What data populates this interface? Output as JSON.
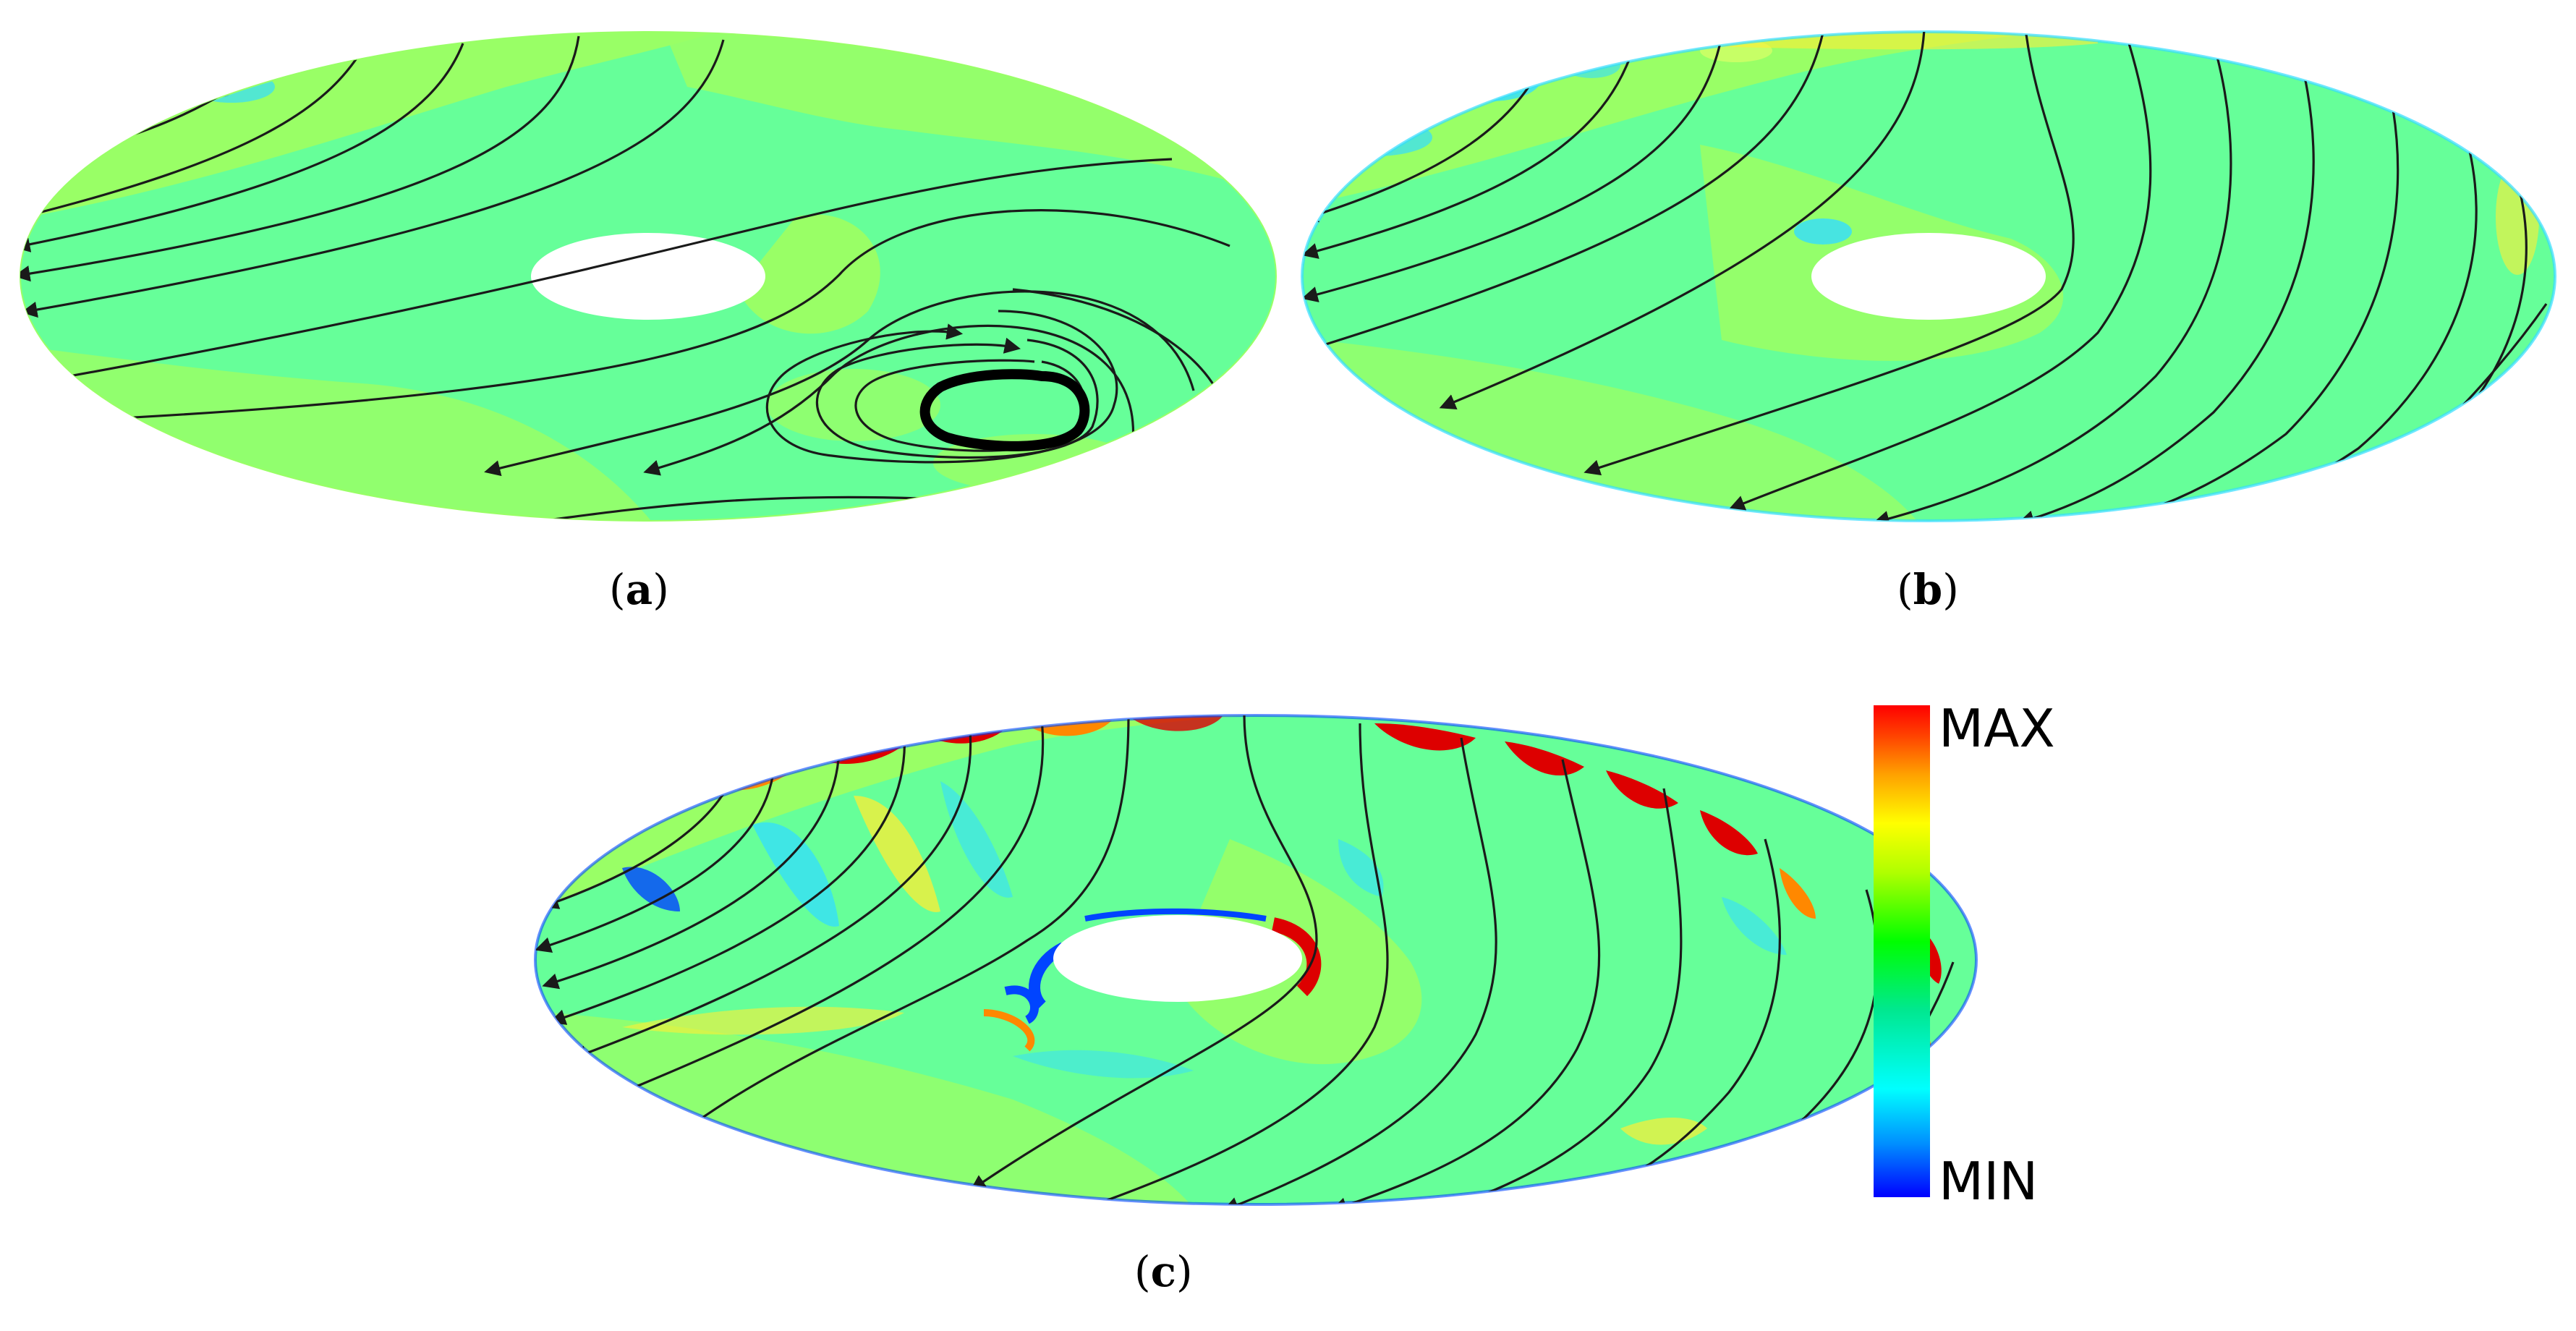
{
  "figure": {
    "panels": [
      {
        "id": "a",
        "label": "a"
      },
      {
        "id": "b",
        "label": "b"
      },
      {
        "id": "c",
        "label": "c"
      }
    ],
    "colorbar": {
      "max_label": "MAX",
      "min_label": "MIN",
      "colors": [
        "#0000ff",
        "#00a0ff",
        "#00ffff",
        "#00e0a0",
        "#00ff00",
        "#a0ff00",
        "#ffff00",
        "#ffb000",
        "#ff6000",
        "#ff0000"
      ]
    },
    "palette": {
      "base_green": "#66ff99",
      "light_green": "#99ff66",
      "yellow_green": "#ccff66",
      "yellow": "#ffee33",
      "orange": "#ff8800",
      "red": "#dd0000",
      "cyan": "#33ddff",
      "blue": "#0044ff"
    }
  }
}
